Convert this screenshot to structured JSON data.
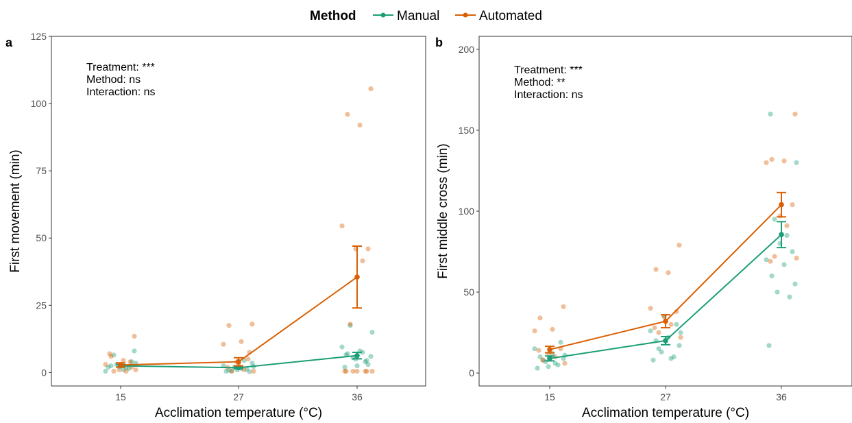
{
  "legend": {
    "title": "Method",
    "entries": [
      {
        "label": "Manual",
        "color": "#1b9e77"
      },
      {
        "label": "Automated",
        "color": "#d95f02"
      }
    ]
  },
  "chart_data": [
    {
      "type": "scatter",
      "panel_label": "a",
      "xlabel": "Acclimation temperature (°C)",
      "ylabel": "First movement (min)",
      "categories": [
        "15",
        "27",
        "36"
      ],
      "ylim": [
        -5,
        125
      ],
      "yticks": [
        0,
        25,
        50,
        75,
        100,
        125
      ],
      "grid": false,
      "annotations": [
        "Treatment: ***",
        "Method: ns",
        "Interaction: ns"
      ],
      "series": [
        {
          "name": "Manual",
          "color": "#1b9e77",
          "means": [
            2.5,
            1.8,
            6.3
          ],
          "se": [
            0.5,
            0.4,
            1.2
          ],
          "points": [
            [
              2.0,
              1.5,
              3.0,
              8.0,
              2.5,
              1.0,
              0.5,
              4.0,
              2.2,
              1.8,
              6.5,
              3.5
            ],
            [
              0.5,
              1.2,
              2.0,
              3.5,
              0.8,
              1.5,
              2.5,
              0.3,
              1.0,
              4.5,
              0.6,
              2.2
            ],
            [
              2.0,
              4.0,
              5.5,
              6.0,
              7.0,
              8.0,
              9.5,
              3.0,
              5.0,
              7.5,
              17.5,
              15.0,
              6.5,
              4.5,
              2.5
            ]
          ]
        },
        {
          "name": "Automated",
          "color": "#d95f02",
          "means": [
            2.8,
            4.0,
            35.5
          ],
          "se": [
            0.8,
            1.5,
            11.5
          ],
          "points": [
            [
              13.5,
              6.0,
              4.5,
              3.0,
              2.0,
              1.0,
              0.5,
              0.5,
              1.0,
              7.0,
              4.0,
              2.5
            ],
            [
              18.0,
              17.5,
              11.5,
              10.5,
              7.5,
              4.0,
              1.0,
              0.5,
              0.5,
              2.0,
              5.0,
              3.0
            ],
            [
              105.5,
              96.0,
              92.0,
              54.5,
              46.0,
              46.0,
              41.5,
              18.0,
              0.5,
              0.5,
              0.5,
              0.5,
              0.5,
              0.5,
              0.5
            ]
          ]
        }
      ]
    },
    {
      "type": "scatter",
      "panel_label": "b",
      "xlabel": "Acclimation temperature (°C)",
      "ylabel": "First middle cross (min)",
      "categories": [
        "15",
        "27",
        "36"
      ],
      "ylim": [
        -8,
        208
      ],
      "yticks": [
        0,
        50,
        100,
        150,
        200
      ],
      "grid": false,
      "annotations": [
        "Treatment: ***",
        "Method: **",
        "Interaction: ns"
      ],
      "series": [
        {
          "name": "Manual",
          "color": "#1b9e77",
          "means": [
            9.0,
            20.0,
            85.5
          ],
          "se": [
            1.5,
            2.5,
            8.0
          ],
          "points": [
            [
              3.0,
              5.0,
              7.0,
              9.0,
              10.0,
              12.0,
              15.0,
              19.0,
              4.0,
              6.0,
              8.0,
              11.0
            ],
            [
              8.0,
              10.0,
              13.0,
              17.0,
              20.0,
              22.0,
              26.0,
              30.0,
              35.0,
              9.0,
              15.0,
              25.0
            ],
            [
              17.0,
              47.0,
              50.0,
              55.0,
              60.0,
              67.0,
              70.0,
              75.0,
              80.0,
              85.0,
              95.0,
              130.0,
              160.0
            ]
          ]
        },
        {
          "name": "Automated",
          "color": "#d95f02",
          "means": [
            14.5,
            32.0,
            104.0
          ],
          "se": [
            2.0,
            4.0,
            7.5
          ],
          "points": [
            [
              41.0,
              34.0,
              27.0,
              26.0,
              15.0,
              12.0,
              10.0,
              8.0,
              6.0,
              14.0
            ],
            [
              79.0,
              64.0,
              62.0,
              40.0,
              38.0,
              35.0,
              30.0,
              25.0,
              22.0,
              28.0
            ],
            [
              160.0,
              132.0,
              131.0,
              130.0,
              104.0,
              97.0,
              91.0,
              72.0,
              71.0,
              69.0
            ]
          ]
        }
      ]
    }
  ]
}
